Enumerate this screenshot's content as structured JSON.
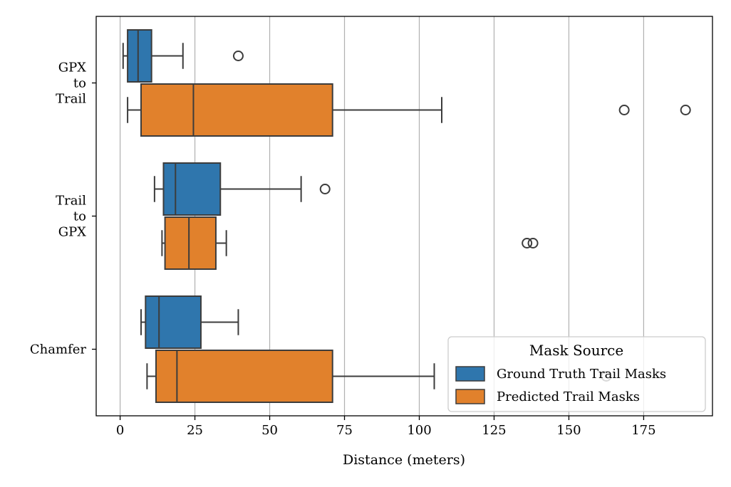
{
  "chart_data": {
    "type": "boxplot",
    "orientation": "horizontal",
    "title": "",
    "xlabel": "Distance (meters)",
    "ylabel": "",
    "xlim": [
      -8,
      198
    ],
    "xticks": [
      0,
      25,
      50,
      75,
      100,
      125,
      150,
      175
    ],
    "xtick_labels": [
      "0",
      "25",
      "50",
      "75",
      "100",
      "125",
      "150",
      "175"
    ],
    "grid": "vertical",
    "categories": [
      {
        "key": "gpx_to_trail",
        "lines": [
          "GPX",
          "to",
          "Trail"
        ]
      },
      {
        "key": "trail_to_gpx",
        "lines": [
          "Trail",
          "to",
          "GPX"
        ]
      },
      {
        "key": "chamfer",
        "lines": [
          "Chamfer"
        ]
      }
    ],
    "legend": {
      "title": "Mask Source",
      "placement": "lower-right"
    },
    "series": [
      {
        "name": "Ground Truth Trail Masks",
        "color": "#2f76ad",
        "boxes": [
          {
            "whislo": 1,
            "q1": 2.5,
            "med": 6,
            "q3": 10.5,
            "whishi": 21,
            "fliers": [
              39.5
            ]
          },
          {
            "whislo": 11.5,
            "q1": 14.5,
            "med": 18.5,
            "q3": 33.5,
            "whishi": 60.5,
            "fliers": [
              68.5
            ]
          },
          {
            "whislo": 7,
            "q1": 8.5,
            "med": 13,
            "q3": 27,
            "whishi": 39.5,
            "fliers": []
          }
        ]
      },
      {
        "name": "Predicted Trail Masks",
        "color": "#e1812c",
        "boxes": [
          {
            "whislo": 2.5,
            "q1": 7,
            "med": 24.5,
            "q3": 71,
            "whishi": 107.5,
            "fliers": [
              168.5,
              189
            ]
          },
          {
            "whislo": 14,
            "q1": 15,
            "med": 23,
            "q3": 32,
            "whishi": 35.5,
            "fliers": [
              136,
              138
            ]
          },
          {
            "whislo": 9,
            "q1": 12,
            "med": 19,
            "q3": 71,
            "whishi": 105,
            "fliers": [
              162.5
            ]
          }
        ]
      }
    ]
  }
}
